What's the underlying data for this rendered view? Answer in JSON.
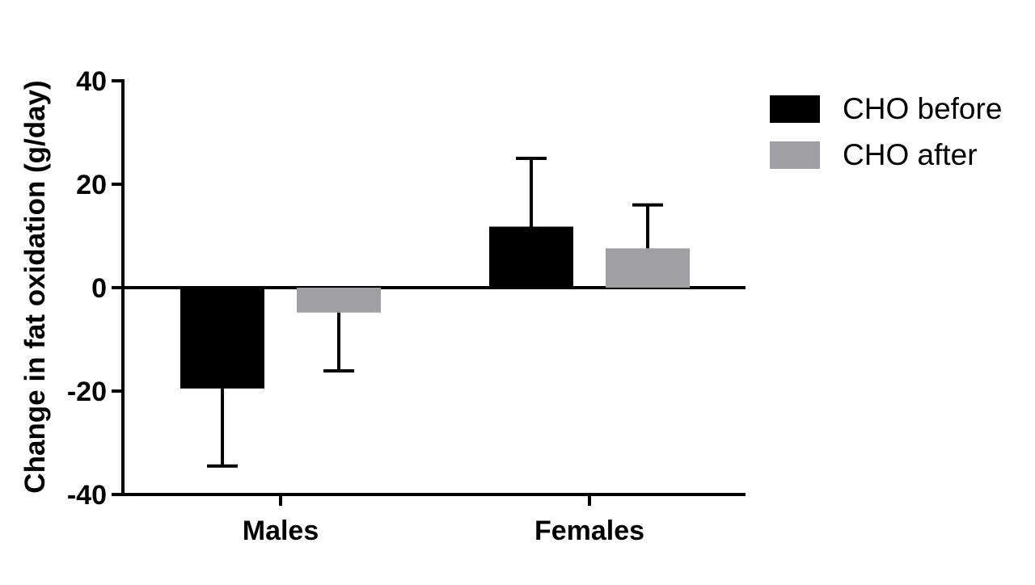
{
  "chart_data": {
    "type": "bar",
    "categories": [
      "Males",
      "Females"
    ],
    "series": [
      {
        "name": "CHO before",
        "color": "#000000",
        "values": [
          -19.5,
          11.8
        ],
        "error_plus": [
          0,
          13.2
        ],
        "error_minus": [
          15.0,
          0
        ]
      },
      {
        "name": "CHO after",
        "color": "#a0a0a4",
        "values": [
          -4.8,
          7.6
        ],
        "error_plus": [
          0,
          8.4
        ],
        "error_minus": [
          11.3,
          0
        ]
      }
    ],
    "title": "",
    "xlabel": "",
    "ylabel": "Change in fat oxidation (g/day)",
    "ylim": [
      -40,
      40
    ],
    "yticks": [
      40,
      20,
      0,
      -20,
      -40
    ],
    "legend_position": "top-right",
    "grid": false
  }
}
